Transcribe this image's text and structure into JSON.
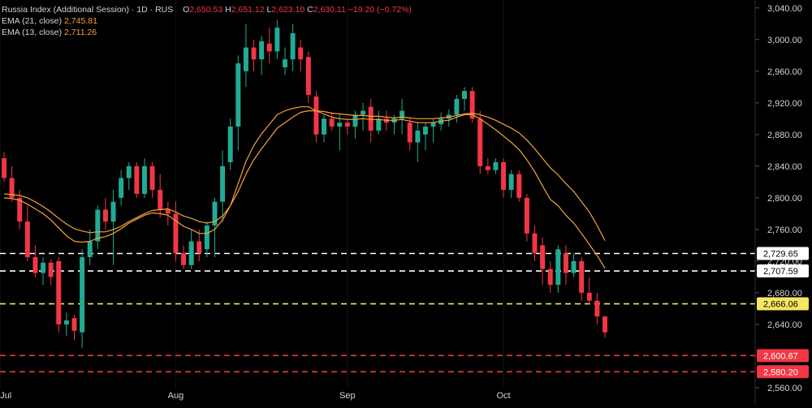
{
  "legend": {
    "title": "Russia Index (Additional Session) · 1D · RUS",
    "open_key": "O",
    "open": "2,650.53",
    "high_key": "H",
    "high": "2,651.12",
    "low_key": "L",
    "low": "2,623.10",
    "close_key": "C",
    "close": "2,630.11",
    "change": "−19.20 (−0.72%)",
    "ema21_label": "EMA (21, close)",
    "ema21_value": "2,745.81",
    "ema13_label": "EMA (13, close)",
    "ema13_value": "2,711.26"
  },
  "colors": {
    "background": "#000000",
    "up": "#22ab94",
    "down": "#f23645",
    "ema21": "#f7a23b",
    "ema13": "#f7a23b",
    "level_white": "#ffffff",
    "level_yellow": "#f5e663",
    "level_red": "#f23645",
    "axis_text": "#d1d4dc"
  },
  "chart_data": {
    "type": "candlestick",
    "y_axis": {
      "min": 2560,
      "max": 3050,
      "ticks": [
        2560,
        2600,
        2640,
        2680,
        2720,
        2760,
        2800,
        2840,
        2880,
        2920,
        2960,
        3000,
        3040
      ],
      "tick_labels": [
        "2,560.00",
        "2,600.00",
        "2,640.00",
        "2,680.00",
        "2,720.00",
        "2,760.00",
        "2,800.00",
        "2,840.00",
        "2,880.00",
        "2,920.00",
        "2,960.00",
        "3,000.00",
        "3,040.00"
      ]
    },
    "x_axis": {
      "labels": [
        {
          "text": "Jul",
          "bar": -0.5
        },
        {
          "text": "Aug",
          "bar": 22
        },
        {
          "text": "Sep",
          "bar": 44
        },
        {
          "text": "Oct",
          "bar": 64
        }
      ]
    },
    "candles": [
      [
        2850,
        2858,
        2820,
        2825
      ],
      [
        2825,
        2840,
        2795,
        2800
      ],
      [
        2800,
        2810,
        2760,
        2770
      ],
      [
        2770,
        2790,
        2720,
        2725
      ],
      [
        2725,
        2740,
        2700,
        2705
      ],
      [
        2705,
        2725,
        2690,
        2718
      ],
      [
        2718,
        2722,
        2690,
        2700
      ],
      [
        2720,
        2725,
        2630,
        2640
      ],
      [
        2640,
        2655,
        2625,
        2645
      ],
      [
        2648,
        2652,
        2620,
        2632
      ],
      [
        2630,
        2735,
        2610,
        2725
      ],
      [
        2725,
        2760,
        2715,
        2745
      ],
      [
        2745,
        2790,
        2735,
        2785
      ],
      [
        2785,
        2800,
        2760,
        2770
      ],
      [
        2770,
        2810,
        2715,
        2795
      ],
      [
        2800,
        2835,
        2790,
        2825
      ],
      [
        2825,
        2845,
        2810,
        2840
      ],
      [
        2840,
        2845,
        2800,
        2805
      ],
      [
        2805,
        2850,
        2800,
        2840
      ],
      [
        2840,
        2845,
        2800,
        2810
      ],
      [
        2810,
        2830,
        2775,
        2785
      ],
      [
        2785,
        2795,
        2765,
        2780
      ],
      [
        2780,
        2795,
        2720,
        2730
      ],
      [
        2730,
        2740,
        2710,
        2715
      ],
      [
        2715,
        2760,
        2710,
        2745
      ],
      [
        2745,
        2760,
        2720,
        2730
      ],
      [
        2735,
        2770,
        2725,
        2765
      ],
      [
        2765,
        2800,
        2725,
        2795
      ],
      [
        2795,
        2860,
        2770,
        2840
      ],
      [
        2845,
        2900,
        2835,
        2890
      ],
      [
        2890,
        2980,
        2860,
        2970
      ],
      [
        2960,
        3020,
        2940,
        2990
      ],
      [
        2990,
        3000,
        2960,
        2975
      ],
      [
        2975,
        3005,
        2955,
        2998
      ],
      [
        2995,
        3015,
        2970,
        2985
      ],
      [
        2985,
        3025,
        2975,
        3015
      ],
      [
        2965,
        2990,
        2955,
        2975
      ],
      [
        2975,
        3020,
        2960,
        3008
      ],
      [
        2990,
        3000,
        2960,
        2975
      ],
      [
        2978,
        2985,
        2920,
        2930
      ],
      [
        2928,
        2935,
        2870,
        2880
      ],
      [
        2880,
        2905,
        2870,
        2900
      ],
      [
        2900,
        2908,
        2885,
        2890
      ],
      [
        2890,
        2905,
        2860,
        2895
      ],
      [
        2895,
        2900,
        2880,
        2890
      ],
      [
        2890,
        2910,
        2875,
        2905
      ],
      [
        2905,
        2920,
        2885,
        2910
      ],
      [
        2915,
        2925,
        2870,
        2885
      ],
      [
        2885,
        2910,
        2880,
        2900
      ],
      [
        2900,
        2910,
        2885,
        2895
      ],
      [
        2895,
        2905,
        2880,
        2900
      ],
      [
        2900,
        2925,
        2880,
        2910
      ],
      [
        2895,
        2900,
        2860,
        2870
      ],
      [
        2870,
        2895,
        2845,
        2885
      ],
      [
        2880,
        2895,
        2860,
        2890
      ],
      [
        2890,
        2900,
        2870,
        2895
      ],
      [
        2893,
        2908,
        2885,
        2900
      ],
      [
        2900,
        2912,
        2890,
        2905
      ],
      [
        2905,
        2930,
        2895,
        2925
      ],
      [
        2925,
        2940,
        2910,
        2935
      ],
      [
        2935,
        2940,
        2895,
        2900
      ],
      [
        2900,
        2910,
        2830,
        2840
      ],
      [
        2840,
        2850,
        2830,
        2835
      ],
      [
        2835,
        2850,
        2830,
        2845
      ],
      [
        2845,
        2850,
        2800,
        2810
      ],
      [
        2810,
        2835,
        2800,
        2830
      ],
      [
        2830,
        2835,
        2795,
        2800
      ],
      [
        2800,
        2805,
        2745,
        2755
      ],
      [
        2755,
        2765,
        2720,
        2730
      ],
      [
        2740,
        2750,
        2690,
        2710
      ],
      [
        2710,
        2720,
        2680,
        2690
      ],
      [
        2690,
        2740,
        2680,
        2735
      ],
      [
        2730,
        2740,
        2690,
        2705
      ],
      [
        2705,
        2730,
        2700,
        2720
      ],
      [
        2720,
        2725,
        2670,
        2680
      ],
      [
        2680,
        2700,
        2665,
        2670
      ],
      [
        2670,
        2680,
        2640,
        2650
      ],
      [
        2650,
        2651,
        2623,
        2630
      ]
    ],
    "ema21": [
      2805,
      2804,
      2803,
      2800,
      2795,
      2789,
      2782,
      2774,
      2767,
      2761,
      2758,
      2756,
      2757,
      2757,
      2760,
      2764,
      2770,
      2775,
      2780,
      2784,
      2785,
      2786,
      2782,
      2777,
      2774,
      2770,
      2768,
      2770,
      2777,
      2790,
      2808,
      2830,
      2848,
      2862,
      2875,
      2888,
      2895,
      2902,
      2908,
      2910,
      2910,
      2909,
      2907,
      2906,
      2905,
      2904,
      2904,
      2903,
      2903,
      2902,
      2901,
      2902,
      2901,
      2900,
      2900,
      2900,
      2901,
      2902,
      2904,
      2906,
      2907,
      2905,
      2902,
      2898,
      2893,
      2888,
      2882,
      2873,
      2862,
      2850,
      2838,
      2829,
      2818,
      2808,
      2795,
      2782,
      2765,
      2746
    ],
    "ema13": [
      2800,
      2799,
      2797,
      2792,
      2786,
      2780,
      2772,
      2762,
      2752,
      2745,
      2744,
      2745,
      2749,
      2751,
      2755,
      2761,
      2768,
      2773,
      2778,
      2781,
      2780,
      2778,
      2771,
      2764,
      2760,
      2755,
      2755,
      2760,
      2772,
      2790,
      2818,
      2846,
      2866,
      2881,
      2893,
      2905,
      2910,
      2913,
      2915,
      2915,
      2910,
      2906,
      2902,
      2900,
      2899,
      2899,
      2900,
      2899,
      2899,
      2898,
      2898,
      2899,
      2897,
      2895,
      2895,
      2895,
      2897,
      2898,
      2902,
      2905,
      2905,
      2900,
      2893,
      2886,
      2878,
      2870,
      2861,
      2848,
      2833,
      2815,
      2798,
      2790,
      2778,
      2768,
      2755,
      2741,
      2727,
      2711
    ],
    "levels": [
      {
        "value": 2729.65,
        "label": "2,729.65",
        "color": "#ffffff",
        "style": "dashed"
      },
      {
        "value": 2707.59,
        "label": "2,707.59",
        "color": "#ffffff",
        "style": "dashed"
      },
      {
        "value": 2666.06,
        "label": "2,666.06",
        "color": "#f5e663",
        "style": "dashed"
      },
      {
        "value": 2600.67,
        "label": "2,600.67",
        "color": "#f23645",
        "style": "dashed"
      },
      {
        "value": 2580.2,
        "label": "2,580.20",
        "color": "#f23645",
        "style": "dashed"
      }
    ]
  }
}
